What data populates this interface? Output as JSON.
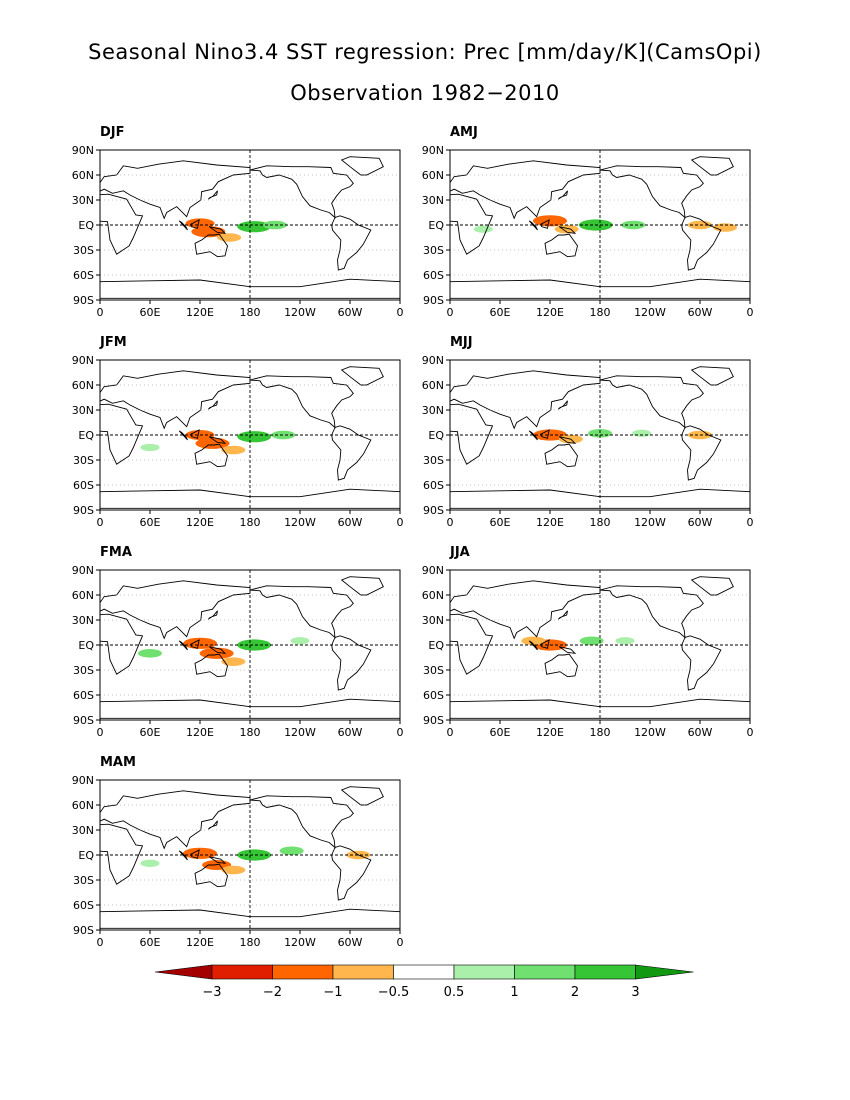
{
  "title_line1": "Seasonal Nino3.4 SST regression: Prec [mm/day/K](CamsOpi)",
  "title_line2": "Observation 1982−2010",
  "colors": {
    "levels_neg": [
      "#a50000",
      "#e01e00",
      "#ff6600",
      "#ffb74d"
    ],
    "levels_pos": [
      "#aaf0aa",
      "#70e070",
      "#35c535",
      "#119a11"
    ]
  },
  "chart_data": {
    "type": "heatmap",
    "map_projection": "lat-lon, centered on 180",
    "x_tick_labels": [
      "0",
      "60E",
      "120E",
      "180",
      "120W",
      "60W",
      "0"
    ],
    "y_tick_labels": [
      "90N",
      "60N",
      "30N",
      "EQ",
      "30S",
      "60S",
      "90S"
    ],
    "xlim": [
      0,
      360
    ],
    "ylim": [
      -90,
      90
    ],
    "colorbar": {
      "tick_labels": [
        "−3",
        "−2",
        "−1",
        "−0.5",
        "0.5",
        "1",
        "2",
        "3"
      ],
      "levels": [
        -3,
        -2,
        -1,
        -0.5,
        0.5,
        1,
        2,
        3
      ],
      "colors": [
        "#a50000",
        "#e01e00",
        "#ff6600",
        "#ffb74d",
        "#ffffff",
        "#aaf0aa",
        "#70e070",
        "#35c535",
        "#119a11"
      ]
    },
    "panels": [
      {
        "label": "DJF",
        "anomalies": [
          {
            "lon": 120,
            "lat": 2,
            "value": -1.5
          },
          {
            "lon": 130,
            "lat": -8,
            "value": -2
          },
          {
            "lon": 155,
            "lat": -15,
            "value": -1
          },
          {
            "lon": 85,
            "lat": 10,
            "value": -0.5
          },
          {
            "lon": 30,
            "lat": -10,
            "value": -0.5
          },
          {
            "lon": 300,
            "lat": 2,
            "value": -0.5
          },
          {
            "lon": 185,
            "lat": -2,
            "value": 2
          },
          {
            "lon": 210,
            "lat": 0,
            "value": 1
          }
        ]
      },
      {
        "label": "AMJ",
        "anomalies": [
          {
            "lon": 120,
            "lat": 5,
            "value": -2
          },
          {
            "lon": 140,
            "lat": -5,
            "value": -1
          },
          {
            "lon": 85,
            "lat": 8,
            "value": -0.5
          },
          {
            "lon": 300,
            "lat": 0,
            "value": -1
          },
          {
            "lon": 330,
            "lat": -3,
            "value": -1
          },
          {
            "lon": 175,
            "lat": 0,
            "value": 2
          },
          {
            "lon": 220,
            "lat": 0,
            "value": 1
          },
          {
            "lon": 40,
            "lat": -5,
            "value": 0.5
          }
        ]
      },
      {
        "label": "JFM",
        "anomalies": [
          {
            "lon": 120,
            "lat": 0,
            "value": -1.5
          },
          {
            "lon": 135,
            "lat": -10,
            "value": -2
          },
          {
            "lon": 160,
            "lat": -18,
            "value": -1
          },
          {
            "lon": 30,
            "lat": -15,
            "value": -0.5
          },
          {
            "lon": 310,
            "lat": 0,
            "value": -0.5
          },
          {
            "lon": 185,
            "lat": -2,
            "value": 2
          },
          {
            "lon": 220,
            "lat": 0,
            "value": 1
          },
          {
            "lon": 60,
            "lat": -15,
            "value": 0.5
          }
        ]
      },
      {
        "label": "MJJ",
        "anomalies": [
          {
            "lon": 120,
            "lat": 0,
            "value": -2
          },
          {
            "lon": 145,
            "lat": -5,
            "value": -1
          },
          {
            "lon": 110,
            "lat": 15,
            "value": -0.5
          },
          {
            "lon": 300,
            "lat": 0,
            "value": -1
          },
          {
            "lon": 340,
            "lat": 0,
            "value": -0.5
          },
          {
            "lon": 180,
            "lat": 2,
            "value": 1
          },
          {
            "lon": 230,
            "lat": 2,
            "value": 0.5
          }
        ]
      },
      {
        "label": "FMA",
        "anomalies": [
          {
            "lon": 120,
            "lat": 2,
            "value": -2
          },
          {
            "lon": 140,
            "lat": -10,
            "value": -2
          },
          {
            "lon": 160,
            "lat": -20,
            "value": -1
          },
          {
            "lon": 90,
            "lat": 5,
            "value": -0.5
          },
          {
            "lon": 310,
            "lat": 0,
            "value": -0.5
          },
          {
            "lon": 185,
            "lat": 0,
            "value": 2
          },
          {
            "lon": 60,
            "lat": -10,
            "value": 1
          },
          {
            "lon": 240,
            "lat": 5,
            "value": 0.5
          }
        ]
      },
      {
        "label": "JJA",
        "anomalies": [
          {
            "lon": 120,
            "lat": 0,
            "value": -2
          },
          {
            "lon": 100,
            "lat": 5,
            "value": -1
          },
          {
            "lon": 300,
            "lat": 12,
            "value": -0.5
          },
          {
            "lon": 340,
            "lat": 0,
            "value": -0.5
          },
          {
            "lon": 170,
            "lat": 5,
            "value": 1
          },
          {
            "lon": 210,
            "lat": 5,
            "value": 0.5
          }
        ]
      },
      {
        "label": "MAM",
        "anomalies": [
          {
            "lon": 120,
            "lat": 2,
            "value": -2
          },
          {
            "lon": 140,
            "lat": -12,
            "value": -1.5
          },
          {
            "lon": 160,
            "lat": -18,
            "value": -1
          },
          {
            "lon": 310,
            "lat": 0,
            "value": -1
          },
          {
            "lon": 185,
            "lat": 0,
            "value": 2
          },
          {
            "lon": 60,
            "lat": -10,
            "value": 0.5
          },
          {
            "lon": 230,
            "lat": 5,
            "value": 1
          }
        ]
      }
    ]
  }
}
